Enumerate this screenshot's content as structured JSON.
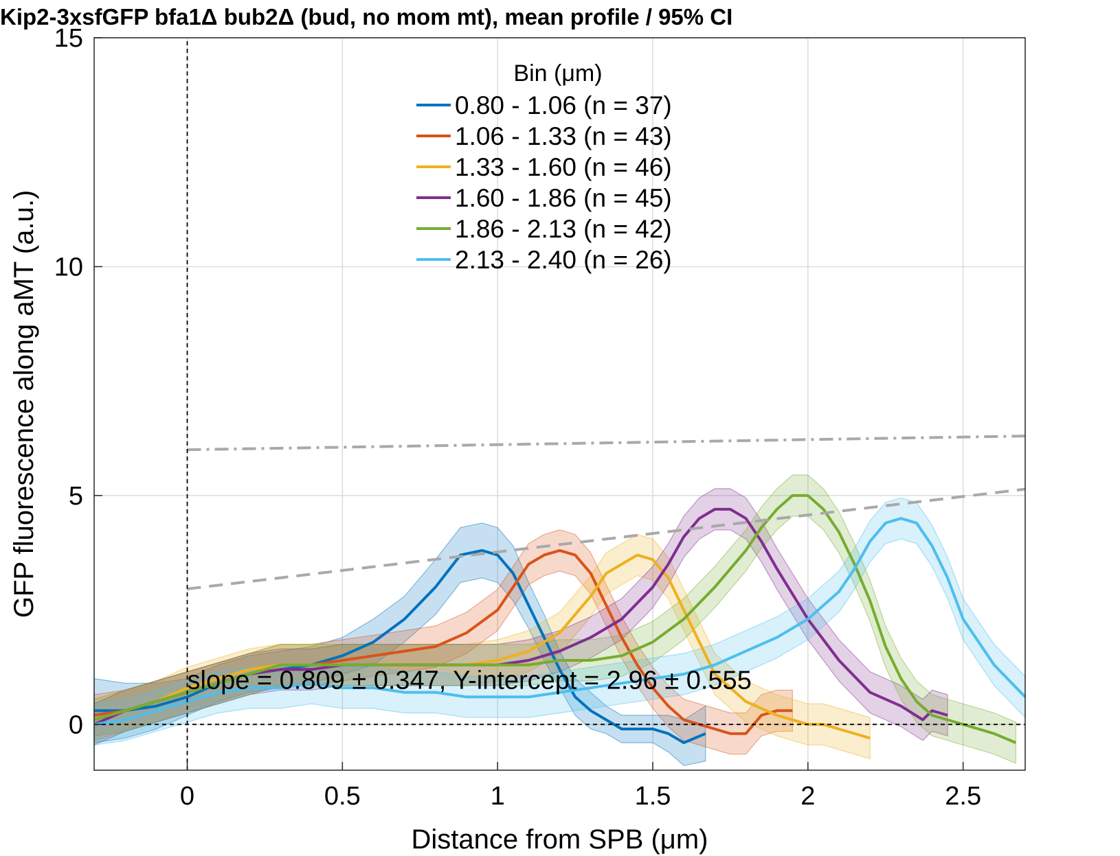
{
  "chart_data": {
    "type": "line",
    "title": "Kip2-3xsfGFP bfa1Δ bub2Δ (bud, no mom mt), mean profile / 95% CI",
    "xlabel": "Distance from SPB (μm)",
    "ylabel": "GFP fluorescence along aMT (a.u.)",
    "xlim": [
      -0.3,
      2.7
    ],
    "ylim": [
      -1,
      15
    ],
    "xticks": [
      0,
      0.5,
      1,
      1.5,
      2,
      2.5
    ],
    "xtick_labels": [
      "0",
      "0.5",
      "1",
      "1.5",
      "2",
      "2.5"
    ],
    "yticks": [
      0,
      5,
      10,
      15
    ],
    "ytick_labels": [
      "0",
      "5",
      "10",
      "15"
    ],
    "grid": true,
    "legend": {
      "title": "Bin (μm)",
      "placement": "top-center"
    },
    "annotation": "slope = 0.809 ± 0.347, Y-intercept = 2.96 ± 0.555",
    "reference_lines": [
      {
        "style": "dashed-gray",
        "x": [
          0,
          2.7
        ],
        "y": [
          2.96,
          5.14
        ]
      },
      {
        "style": "dashdot-gray",
        "x": [
          0,
          2.7
        ],
        "y": [
          6.0,
          6.3
        ]
      },
      {
        "style": "dotted-black",
        "x": [
          -0.3,
          2.7
        ],
        "y": [
          0,
          0
        ]
      },
      {
        "style": "dotted-black-vertical",
        "x": [
          0,
          0
        ],
        "y": [
          -1,
          15
        ]
      }
    ],
    "series": [
      {
        "name": "0.80 - 1.06 (n =  37)",
        "color": "#0072BD",
        "x": [
          -0.3,
          -0.2,
          -0.1,
          0,
          0.1,
          0.2,
          0.3,
          0.4,
          0.5,
          0.6,
          0.7,
          0.8,
          0.88,
          0.95,
          1.0,
          1.05,
          1.1,
          1.15,
          1.2,
          1.25,
          1.3,
          1.35,
          1.4,
          1.45,
          1.5,
          1.55,
          1.6,
          1.67
        ],
        "y": [
          0.3,
          0.3,
          0.4,
          0.6,
          0.9,
          1.1,
          1.2,
          1.3,
          1.5,
          1.8,
          2.3,
          3.0,
          3.7,
          3.8,
          3.7,
          3.3,
          2.6,
          1.9,
          1.2,
          0.6,
          0.3,
          0.1,
          -0.1,
          -0.1,
          -0.1,
          -0.2,
          -0.4,
          -0.2
        ],
        "ci": [
          0.7,
          0.6,
          0.5,
          0.4,
          0.4,
          0.4,
          0.4,
          0.4,
          0.4,
          0.5,
          0.5,
          0.6,
          0.6,
          0.6,
          0.6,
          0.6,
          0.5,
          0.5,
          0.4,
          0.4,
          0.4,
          0.3,
          0.3,
          0.3,
          0.3,
          0.4,
          0.5,
          0.6
        ]
      },
      {
        "name": "1.06 - 1.33 (n =  43)",
        "color": "#D95319",
        "x": [
          -0.3,
          -0.2,
          -0.1,
          0,
          0.1,
          0.2,
          0.3,
          0.4,
          0.5,
          0.6,
          0.7,
          0.8,
          0.9,
          1.0,
          1.1,
          1.15,
          1.2,
          1.25,
          1.3,
          1.35,
          1.4,
          1.45,
          1.5,
          1.55,
          1.6,
          1.7,
          1.75,
          1.8,
          1.85,
          1.9,
          1.95
        ],
        "y": [
          0.2,
          0.3,
          0.5,
          0.7,
          0.9,
          1.1,
          1.3,
          1.3,
          1.4,
          1.5,
          1.6,
          1.7,
          2.0,
          2.5,
          3.5,
          3.7,
          3.8,
          3.7,
          3.3,
          2.6,
          1.9,
          1.3,
          0.8,
          0.4,
          0.1,
          -0.1,
          -0.2,
          -0.2,
          0.2,
          0.3,
          0.3
        ]
      },
      {
        "name": "1.33 - 1.60 (n =  46)",
        "color": "#EDB120",
        "x": [
          -0.3,
          -0.2,
          -0.1,
          0,
          0.1,
          0.2,
          0.3,
          0.4,
          0.5,
          0.6,
          0.7,
          0.8,
          0.9,
          1.0,
          1.1,
          1.2,
          1.3,
          1.35,
          1.4,
          1.45,
          1.5,
          1.55,
          1.6,
          1.65,
          1.7,
          1.8,
          1.9,
          2.0,
          2.05,
          2.1,
          2.2
        ],
        "y": [
          0.1,
          0.3,
          0.5,
          0.8,
          1.0,
          1.2,
          1.3,
          1.3,
          1.3,
          1.3,
          1.3,
          1.3,
          1.3,
          1.4,
          1.6,
          2.0,
          2.8,
          3.3,
          3.5,
          3.7,
          3.6,
          3.2,
          2.5,
          1.8,
          1.1,
          0.5,
          0.2,
          0.0,
          0.0,
          -0.1,
          -0.3
        ]
      },
      {
        "name": "1.60 - 1.86 (n =  45)",
        "color": "#7E2F8E",
        "x": [
          -0.3,
          -0.2,
          -0.1,
          0,
          0.1,
          0.2,
          0.3,
          0.4,
          0.5,
          0.6,
          0.7,
          0.8,
          0.9,
          1.0,
          1.1,
          1.2,
          1.3,
          1.4,
          1.5,
          1.55,
          1.6,
          1.65,
          1.7,
          1.75,
          1.8,
          1.85,
          1.9,
          2.0,
          2.1,
          2.2,
          2.3,
          2.37,
          2.4,
          2.45
        ],
        "y": [
          0.0,
          0.3,
          0.5,
          0.7,
          0.9,
          1.1,
          1.2,
          1.2,
          1.3,
          1.3,
          1.3,
          1.3,
          1.3,
          1.3,
          1.4,
          1.6,
          1.9,
          2.3,
          3.0,
          3.5,
          4.1,
          4.5,
          4.7,
          4.7,
          4.5,
          4.0,
          3.4,
          2.3,
          1.4,
          0.7,
          0.4,
          0.1,
          0.3,
          0.2
        ]
      },
      {
        "name": "1.86 - 2.13 (n =  42)",
        "color": "#77AC30",
        "x": [
          -0.3,
          -0.2,
          -0.1,
          0,
          0.1,
          0.2,
          0.3,
          0.4,
          0.5,
          0.6,
          0.7,
          0.8,
          0.9,
          1.0,
          1.1,
          1.2,
          1.3,
          1.4,
          1.5,
          1.6,
          1.7,
          1.8,
          1.85,
          1.9,
          1.95,
          2.0,
          2.05,
          2.1,
          2.15,
          2.2,
          2.25,
          2.3,
          2.35,
          2.4,
          2.5,
          2.6,
          2.67
        ],
        "y": [
          0.1,
          0.3,
          0.5,
          0.7,
          0.9,
          1.1,
          1.3,
          1.3,
          1.3,
          1.3,
          1.3,
          1.3,
          1.3,
          1.3,
          1.3,
          1.4,
          1.4,
          1.5,
          1.8,
          2.3,
          3.0,
          3.8,
          4.3,
          4.7,
          5.0,
          5.0,
          4.7,
          4.2,
          3.5,
          2.7,
          1.7,
          1.0,
          0.5,
          0.2,
          0.0,
          -0.2,
          -0.4
        ]
      },
      {
        "name": "2.13 - 2.40 (n =  26)",
        "color": "#4DBEEE",
        "x": [
          -0.3,
          -0.2,
          -0.1,
          0,
          0.1,
          0.2,
          0.3,
          0.4,
          0.5,
          0.6,
          0.7,
          0.8,
          0.9,
          1.0,
          1.1,
          1.2,
          1.3,
          1.4,
          1.5,
          1.6,
          1.7,
          1.8,
          1.9,
          2.0,
          2.1,
          2.15,
          2.2,
          2.25,
          2.3,
          2.35,
          2.4,
          2.45,
          2.5,
          2.6,
          2.7
        ],
        "y": [
          0.0,
          0.1,
          0.3,
          0.5,
          0.7,
          0.8,
          0.8,
          0.9,
          0.8,
          0.8,
          0.7,
          0.7,
          0.6,
          0.6,
          0.6,
          0.7,
          0.8,
          0.9,
          1.0,
          1.1,
          1.3,
          1.6,
          1.9,
          2.3,
          2.9,
          3.4,
          4.0,
          4.4,
          4.5,
          4.4,
          3.9,
          3.2,
          2.3,
          1.3,
          0.6
        ]
      }
    ]
  }
}
